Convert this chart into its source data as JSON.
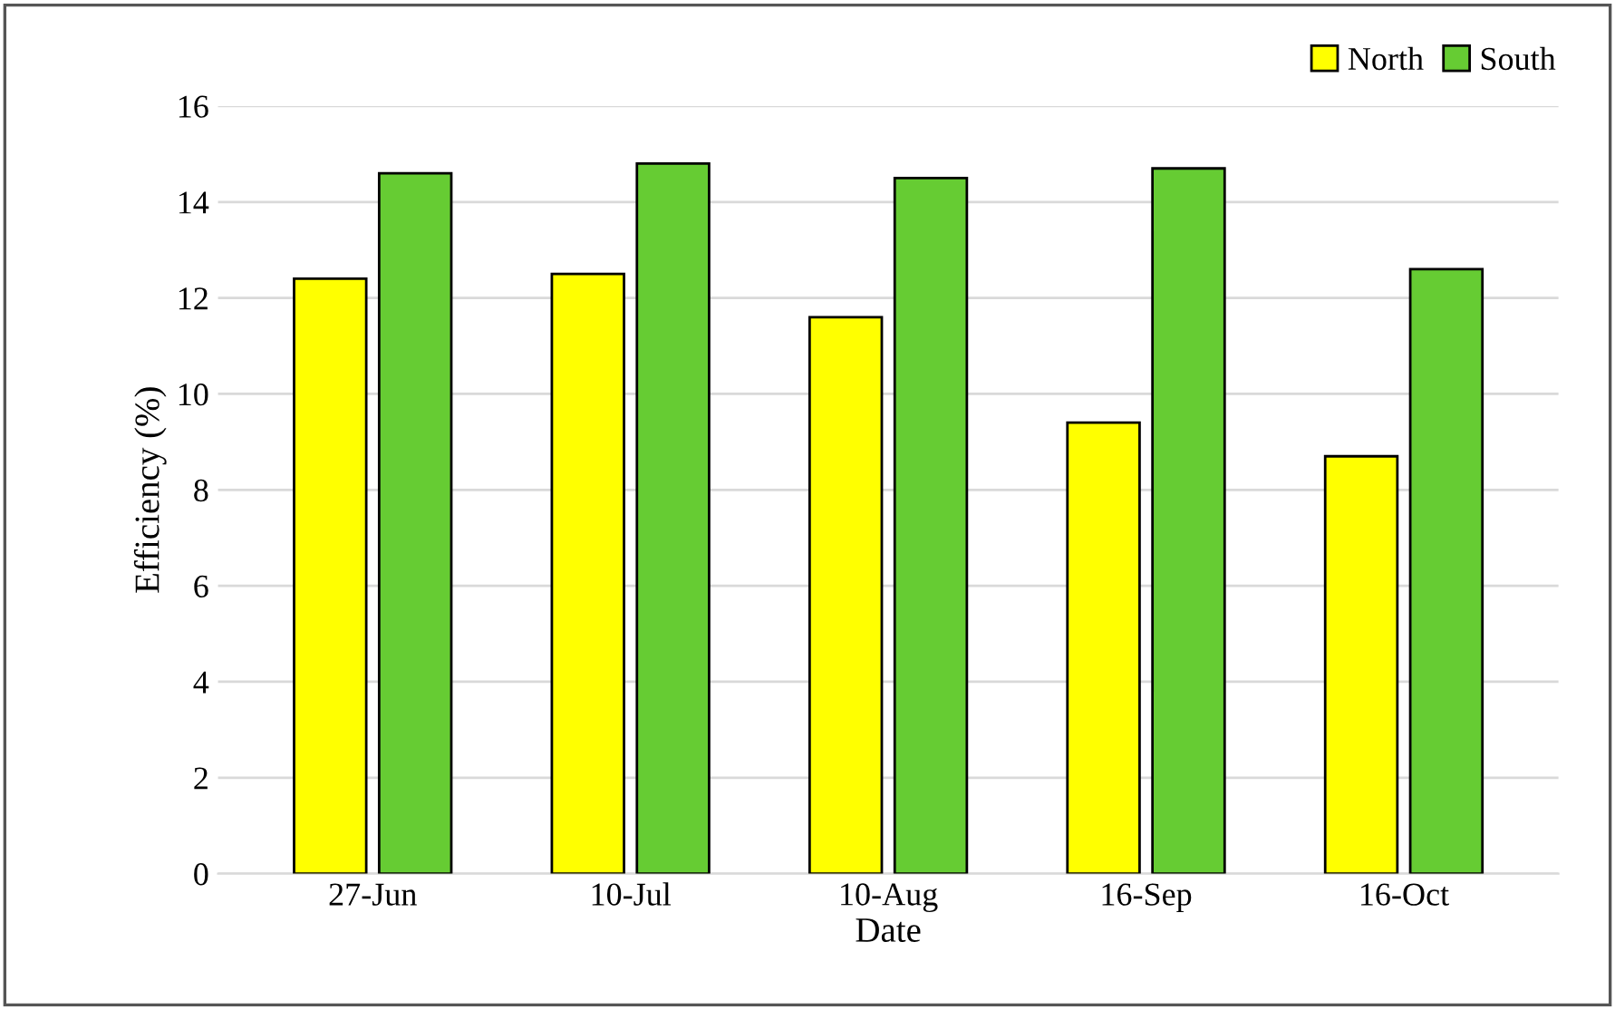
{
  "chart_data": {
    "type": "bar",
    "xlabel": "Date",
    "ylabel": "Efficiency (%)",
    "categories": [
      "27-Jun",
      "10-Jul",
      "10-Aug",
      "16-Sep",
      "16-Oct"
    ],
    "series": [
      {
        "name": "North",
        "color": "#ffff00",
        "values": [
          12.4,
          12.5,
          11.6,
          9.4,
          8.7
        ]
      },
      {
        "name": "South",
        "color": "#66cc33",
        "values": [
          14.6,
          14.8,
          14.5,
          14.7,
          12.6
        ]
      }
    ],
    "ylim": [
      0,
      16
    ],
    "yticks": [
      0,
      2,
      4,
      6,
      8,
      10,
      12,
      14,
      16
    ],
    "grid": "y",
    "legend": "top right"
  }
}
